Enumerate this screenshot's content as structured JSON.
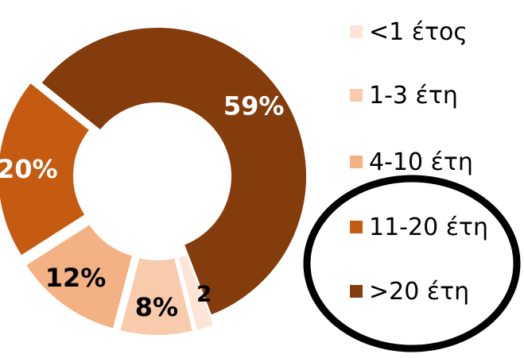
{
  "chart_data": {
    "type": "pie",
    "categories": [
      "<1 έτος",
      "1-3 έτη",
      "4-10 έτη",
      "11-20 έτη",
      ">20 έτη"
    ],
    "values": [
      2,
      8,
      12,
      20,
      59
    ],
    "data_labels": [
      "2",
      "8%",
      "12%",
      "20%",
      "59%"
    ],
    "colors": [
      "#FCE4D6",
      "#F8CBAD",
      "#F4B183",
      "#C55A11",
      "#843C0C"
    ],
    "donut": true,
    "legend_position": "right",
    "annotation": "black ellipse circling the legend entries 11-20 έτη and >20 έτη"
  }
}
